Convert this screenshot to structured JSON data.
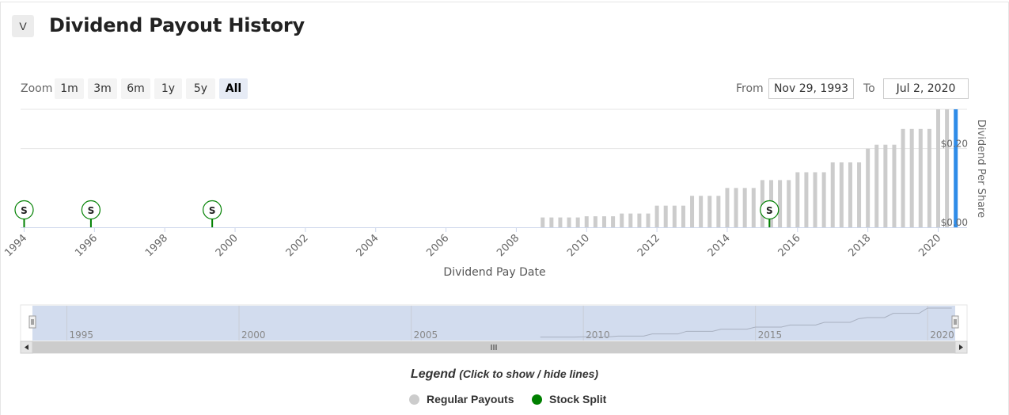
{
  "header": {
    "badge": "V",
    "title": "Dividend Payout History"
  },
  "zoom": {
    "label": "Zoom",
    "buttons": [
      "1m",
      "3m",
      "6m",
      "1y",
      "5y",
      "All"
    ],
    "active": "All"
  },
  "range": {
    "from_label": "From",
    "from_value": "Nov 29, 1993",
    "to_label": "To",
    "to_value": "Jul 2, 2020"
  },
  "colors": {
    "regular": "#cccccc",
    "split": "#008000",
    "highlight": "#2f8ce8",
    "navigator_fill": "#d2dcee"
  },
  "chart_data": {
    "type": "bar",
    "xlabel": "Dividend Pay Date",
    "ylabel": "Dividend Per Share",
    "xlim": [
      1994,
      2020.8
    ],
    "ylim": [
      0,
      0.3
    ],
    "x_ticks": [
      "1994",
      "1996",
      "1998",
      "2000",
      "2002",
      "2004",
      "2006",
      "2008",
      "2010",
      "2012",
      "2014",
      "2016",
      "2018",
      "2020"
    ],
    "y_ticks": [
      "$0.00",
      "$0.20"
    ],
    "series": [
      {
        "name": "Regular Payouts",
        "x": [
          2008.75,
          2009.0,
          2009.25,
          2009.5,
          2009.75,
          2010.0,
          2010.25,
          2010.5,
          2010.75,
          2011.0,
          2011.25,
          2011.5,
          2011.75,
          2012.0,
          2012.25,
          2012.5,
          2012.75,
          2013.0,
          2013.25,
          2013.5,
          2013.75,
          2014.0,
          2014.25,
          2014.5,
          2014.75,
          2015.0,
          2015.25,
          2015.5,
          2015.75,
          2016.0,
          2016.25,
          2016.5,
          2016.75,
          2017.0,
          2017.25,
          2017.5,
          2017.75,
          2018.0,
          2018.25,
          2018.5,
          2018.75,
          2019.0,
          2019.25,
          2019.5,
          2019.75,
          2020.0,
          2020.25,
          2020.5
        ],
        "values": [
          0.025,
          0.025,
          0.025,
          0.025,
          0.025,
          0.028,
          0.028,
          0.028,
          0.028,
          0.035,
          0.035,
          0.035,
          0.035,
          0.055,
          0.055,
          0.055,
          0.055,
          0.08,
          0.08,
          0.08,
          0.08,
          0.1,
          0.1,
          0.1,
          0.1,
          0.12,
          0.12,
          0.12,
          0.12,
          0.14,
          0.14,
          0.14,
          0.14,
          0.165,
          0.165,
          0.165,
          0.165,
          0.2,
          0.21,
          0.21,
          0.21,
          0.25,
          0.25,
          0.25,
          0.25,
          0.3,
          0.3,
          0.3
        ]
      },
      {
        "name": "Stock Split",
        "x": [
          1994.0,
          1995.9,
          1999.35,
          2015.2
        ],
        "marker": "S"
      }
    ],
    "highlight_x": 2020.5,
    "navigator": {
      "ticks": [
        "1995",
        "2000",
        "2005",
        "2010",
        "2015",
        "2020"
      ]
    },
    "legend": {
      "title": "Legend",
      "subtitle": "(Click to show / hide lines)",
      "position": "bottom"
    }
  }
}
